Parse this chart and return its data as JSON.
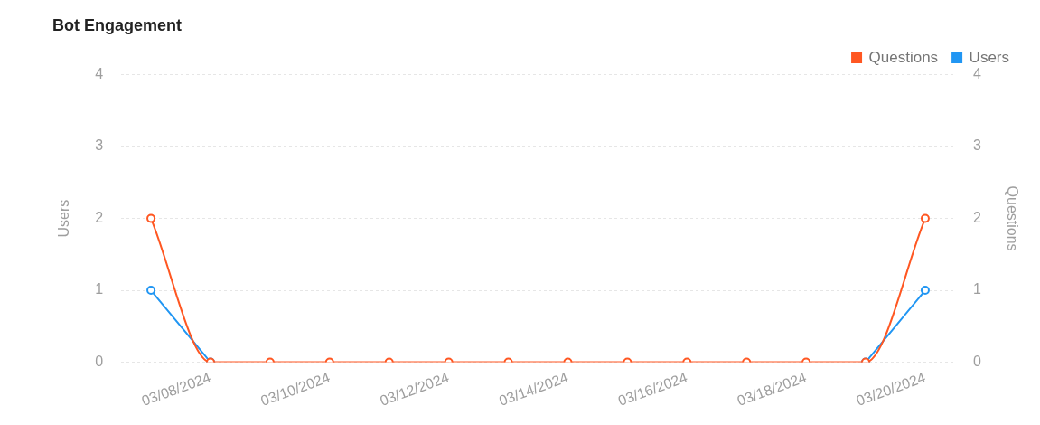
{
  "chart_data": {
    "type": "line",
    "title": "Bot Engagement",
    "ylabel": "Users",
    "y2label": "Questions",
    "categories": [
      null,
      "03/08/2024",
      null,
      "03/10/2024",
      null,
      "03/12/2024",
      null,
      "03/14/2024",
      null,
      "03/16/2024",
      null,
      "03/18/2024",
      null,
      "03/20/2024"
    ],
    "series": [
      {
        "name": "Users",
        "color": "#2196f3",
        "values": [
          1,
          0,
          null,
          null,
          null,
          null,
          null,
          null,
          null,
          null,
          null,
          null,
          0,
          1
        ]
      },
      {
        "name": "Questions",
        "color": "#ff5722",
        "axis": "y2",
        "values": [
          2,
          0,
          0,
          0,
          0,
          0,
          0,
          0,
          0,
          0,
          0,
          0,
          0,
          2
        ]
      }
    ],
    "ylim": [
      0,
      4
    ],
    "yticks": [
      0,
      1,
      2,
      3,
      4
    ],
    "y2lim": [
      0,
      4
    ],
    "y2ticks": [
      0,
      1,
      2,
      3,
      4
    ],
    "grid": "y",
    "legend": "top right",
    "marker": "circle"
  }
}
